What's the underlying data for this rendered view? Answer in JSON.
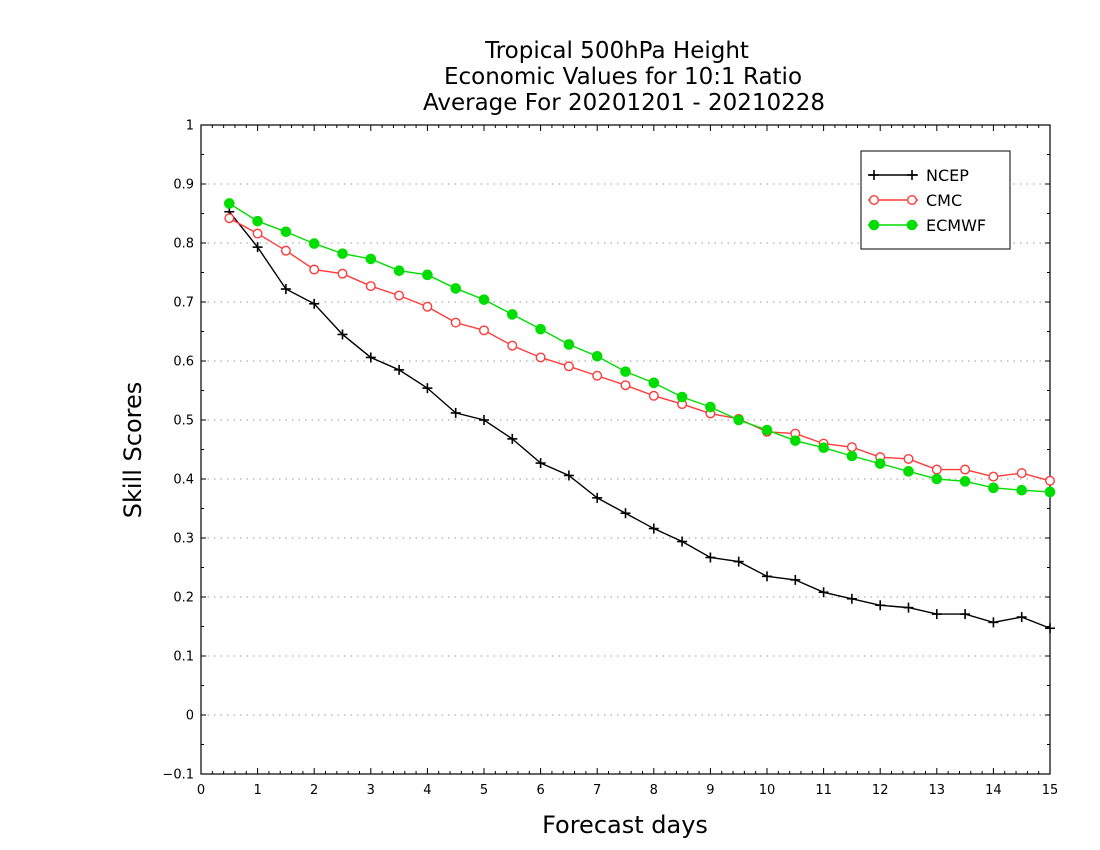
{
  "chart_data": {
    "type": "line",
    "title": [
      "Tropical 500hPa Height",
      "Economic Values for 10:1 Ratio",
      "Average For 20201201 - 20210228"
    ],
    "xlabel": "Forecast days",
    "ylabel": "Skill Scores",
    "xlim": [
      0,
      15
    ],
    "ylim": [
      -0.1,
      1
    ],
    "xticks": [
      "0",
      "1",
      "2",
      "3",
      "4",
      "5",
      "6",
      "7",
      "8",
      "9",
      "10",
      "11",
      "12",
      "13",
      "14",
      "15"
    ],
    "yticks": [
      "−0.1",
      "0",
      "0.1",
      "0.2",
      "0.3",
      "0.4",
      "0.5",
      "0.6",
      "0.7",
      "0.8",
      "0.9",
      "1"
    ],
    "grid": "horizontal-dotted",
    "legend": "top-right",
    "x": [
      0.5,
      1,
      1.5,
      2,
      2.5,
      3,
      3.5,
      4,
      4.5,
      5,
      5.5,
      6,
      6.5,
      7,
      7.5,
      8,
      8.5,
      9,
      9.5,
      10,
      10.5,
      11,
      11.5,
      12,
      12.5,
      13,
      13.5,
      14,
      14.5,
      15
    ],
    "series": [
      {
        "name": "NCEP",
        "color": "#000000",
        "marker": "plus",
        "values": [
          0.853,
          0.793,
          0.722,
          0.697,
          0.645,
          0.606,
          0.585,
          0.554,
          0.512,
          0.5,
          0.468,
          0.427,
          0.406,
          0.368,
          0.342,
          0.316,
          0.294,
          0.267,
          0.26,
          0.235,
          0.229,
          0.208,
          0.197,
          0.186,
          0.182,
          0.171,
          0.171,
          0.157,
          0.166,
          0.147
        ]
      },
      {
        "name": "CMC",
        "color": "#ff3a3a",
        "marker": "open-circle",
        "values": [
          0.842,
          0.816,
          0.787,
          0.755,
          0.748,
          0.727,
          0.711,
          0.692,
          0.665,
          0.652,
          0.626,
          0.606,
          0.591,
          0.575,
          0.559,
          0.541,
          0.527,
          0.511,
          0.502,
          0.48,
          0.477,
          0.46,
          0.454,
          0.437,
          0.434,
          0.416,
          0.416,
          0.404,
          0.41,
          0.397
        ]
      },
      {
        "name": "ECMWF",
        "color": "#00dd00",
        "marker": "filled-circle",
        "values": [
          0.867,
          0.837,
          0.819,
          0.799,
          0.782,
          0.773,
          0.753,
          0.746,
          0.723,
          0.704,
          0.679,
          0.654,
          0.628,
          0.608,
          0.582,
          0.563,
          0.539,
          0.522,
          0.5,
          0.483,
          0.465,
          0.453,
          0.439,
          0.426,
          0.413,
          0.4,
          0.396,
          0.385,
          0.381,
          0.378
        ]
      }
    ]
  }
}
